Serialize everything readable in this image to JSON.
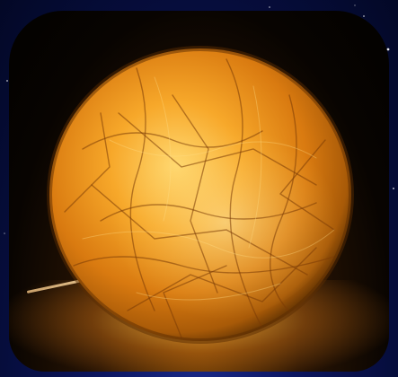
{
  "scene": {
    "subject": "glowing-paper-globe-lamp",
    "background_color": "#0a1450",
    "glow_color": "#ffb030",
    "shell_color": "#d97a10"
  }
}
